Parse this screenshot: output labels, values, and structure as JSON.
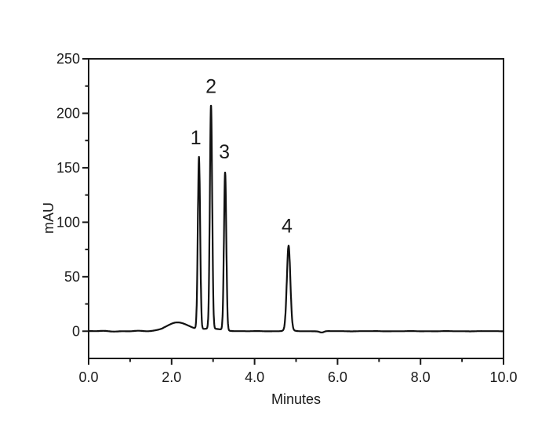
{
  "chart_data": {
    "type": "line",
    "title": "",
    "xlabel": "Minutes",
    "ylabel": "mAU",
    "xlim": [
      0,
      10
    ],
    "ylim": [
      -25,
      250
    ],
    "grid": false,
    "legend": null,
    "line_color": "#111111",
    "axis_color": "#1a1a1a",
    "background_color": "#ffffff",
    "x_major_ticks": [
      {
        "value": 0,
        "label": "0.0"
      },
      {
        "value": 2,
        "label": "2.0"
      },
      {
        "value": 4,
        "label": "4.0"
      },
      {
        "value": 6,
        "label": "6.0"
      },
      {
        "value": 8,
        "label": "8.0"
      },
      {
        "value": 10,
        "label": "10.0"
      }
    ],
    "x_minor_ticks": [
      1,
      3,
      5,
      7,
      9
    ],
    "y_major_ticks": [
      {
        "value": 0,
        "label": "0"
      },
      {
        "value": 50,
        "label": "50"
      },
      {
        "value": 100,
        "label": "100"
      },
      {
        "value": 150,
        "label": "150"
      },
      {
        "value": 200,
        "label": "200"
      },
      {
        "value": 250,
        "label": "250"
      }
    ],
    "y_minor_ticks": [
      25,
      75,
      125,
      175,
      225
    ],
    "peaks": [
      {
        "label": "1",
        "rt_min": 2.66,
        "height_mAU": 158,
        "sigma_min": 0.028,
        "label_dx": -4
      },
      {
        "label": "2",
        "rt_min": 2.95,
        "height_mAU": 205,
        "sigma_min": 0.028,
        "label_dx": 0
      },
      {
        "label": "3",
        "rt_min": 3.29,
        "height_mAU": 145,
        "sigma_min": 0.028,
        "label_dx": -1
      },
      {
        "label": "4",
        "rt_min": 4.82,
        "height_mAU": 77,
        "sigma_min": 0.042,
        "label_dx": -2
      }
    ],
    "baseline_features": [
      {
        "name": "solvent-front-bump",
        "center_min": 2.15,
        "height_mAU": 8,
        "sigma_min": 0.26
      },
      {
        "name": "cluster-foot",
        "center_min": 2.97,
        "height_mAU": 2.3,
        "sigma_min": 0.24
      },
      {
        "name": "peak4-foot",
        "center_min": 4.82,
        "height_mAU": 1.5,
        "sigma_min": 0.09
      },
      {
        "name": "baseline-dip",
        "center_min": 5.62,
        "height_mAU": -1.2,
        "sigma_min": 0.05
      }
    ],
    "noise_mAU": 0.4
  }
}
